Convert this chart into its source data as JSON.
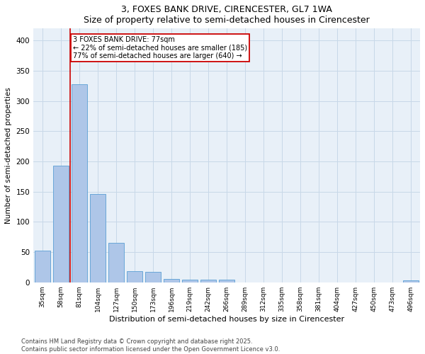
{
  "title": "3, FOXES BANK DRIVE, CIRENCESTER, GL7 1WA",
  "subtitle": "Size of property relative to semi-detached houses in Cirencester",
  "xlabel": "Distribution of semi-detached houses by size in Cirencester",
  "ylabel": "Number of semi-detached properties",
  "footer_line1": "Contains HM Land Registry data © Crown copyright and database right 2025.",
  "footer_line2": "Contains public sector information licensed under the Open Government Licence v3.0.",
  "bins": [
    "35sqm",
    "58sqm",
    "81sqm",
    "104sqm",
    "127sqm",
    "150sqm",
    "173sqm",
    "196sqm",
    "219sqm",
    "242sqm",
    "266sqm",
    "289sqm",
    "312sqm",
    "335sqm",
    "358sqm",
    "381sqm",
    "404sqm",
    "427sqm",
    "450sqm",
    "473sqm",
    "496sqm"
  ],
  "values": [
    52,
    193,
    328,
    146,
    65,
    18,
    17,
    6,
    4,
    4,
    4,
    0,
    0,
    0,
    0,
    0,
    0,
    0,
    0,
    0,
    3
  ],
  "bar_color": "#aec6e8",
  "bar_edge_color": "#5a9fd4",
  "property_bin_index": 1,
  "property_label": "3 FOXES BANK DRIVE: 77sqm",
  "pct_smaller": 22,
  "pct_larger": 77,
  "count_smaller": 185,
  "count_larger": 640,
  "vline_color": "#cc0000",
  "annotation_box_color": "#cc0000",
  "grid_color": "#c8d8e8",
  "background_color": "#e8f0f8",
  "ylim": [
    0,
    420
  ],
  "yticks": [
    0,
    50,
    100,
    150,
    200,
    250,
    300,
    350,
    400
  ]
}
